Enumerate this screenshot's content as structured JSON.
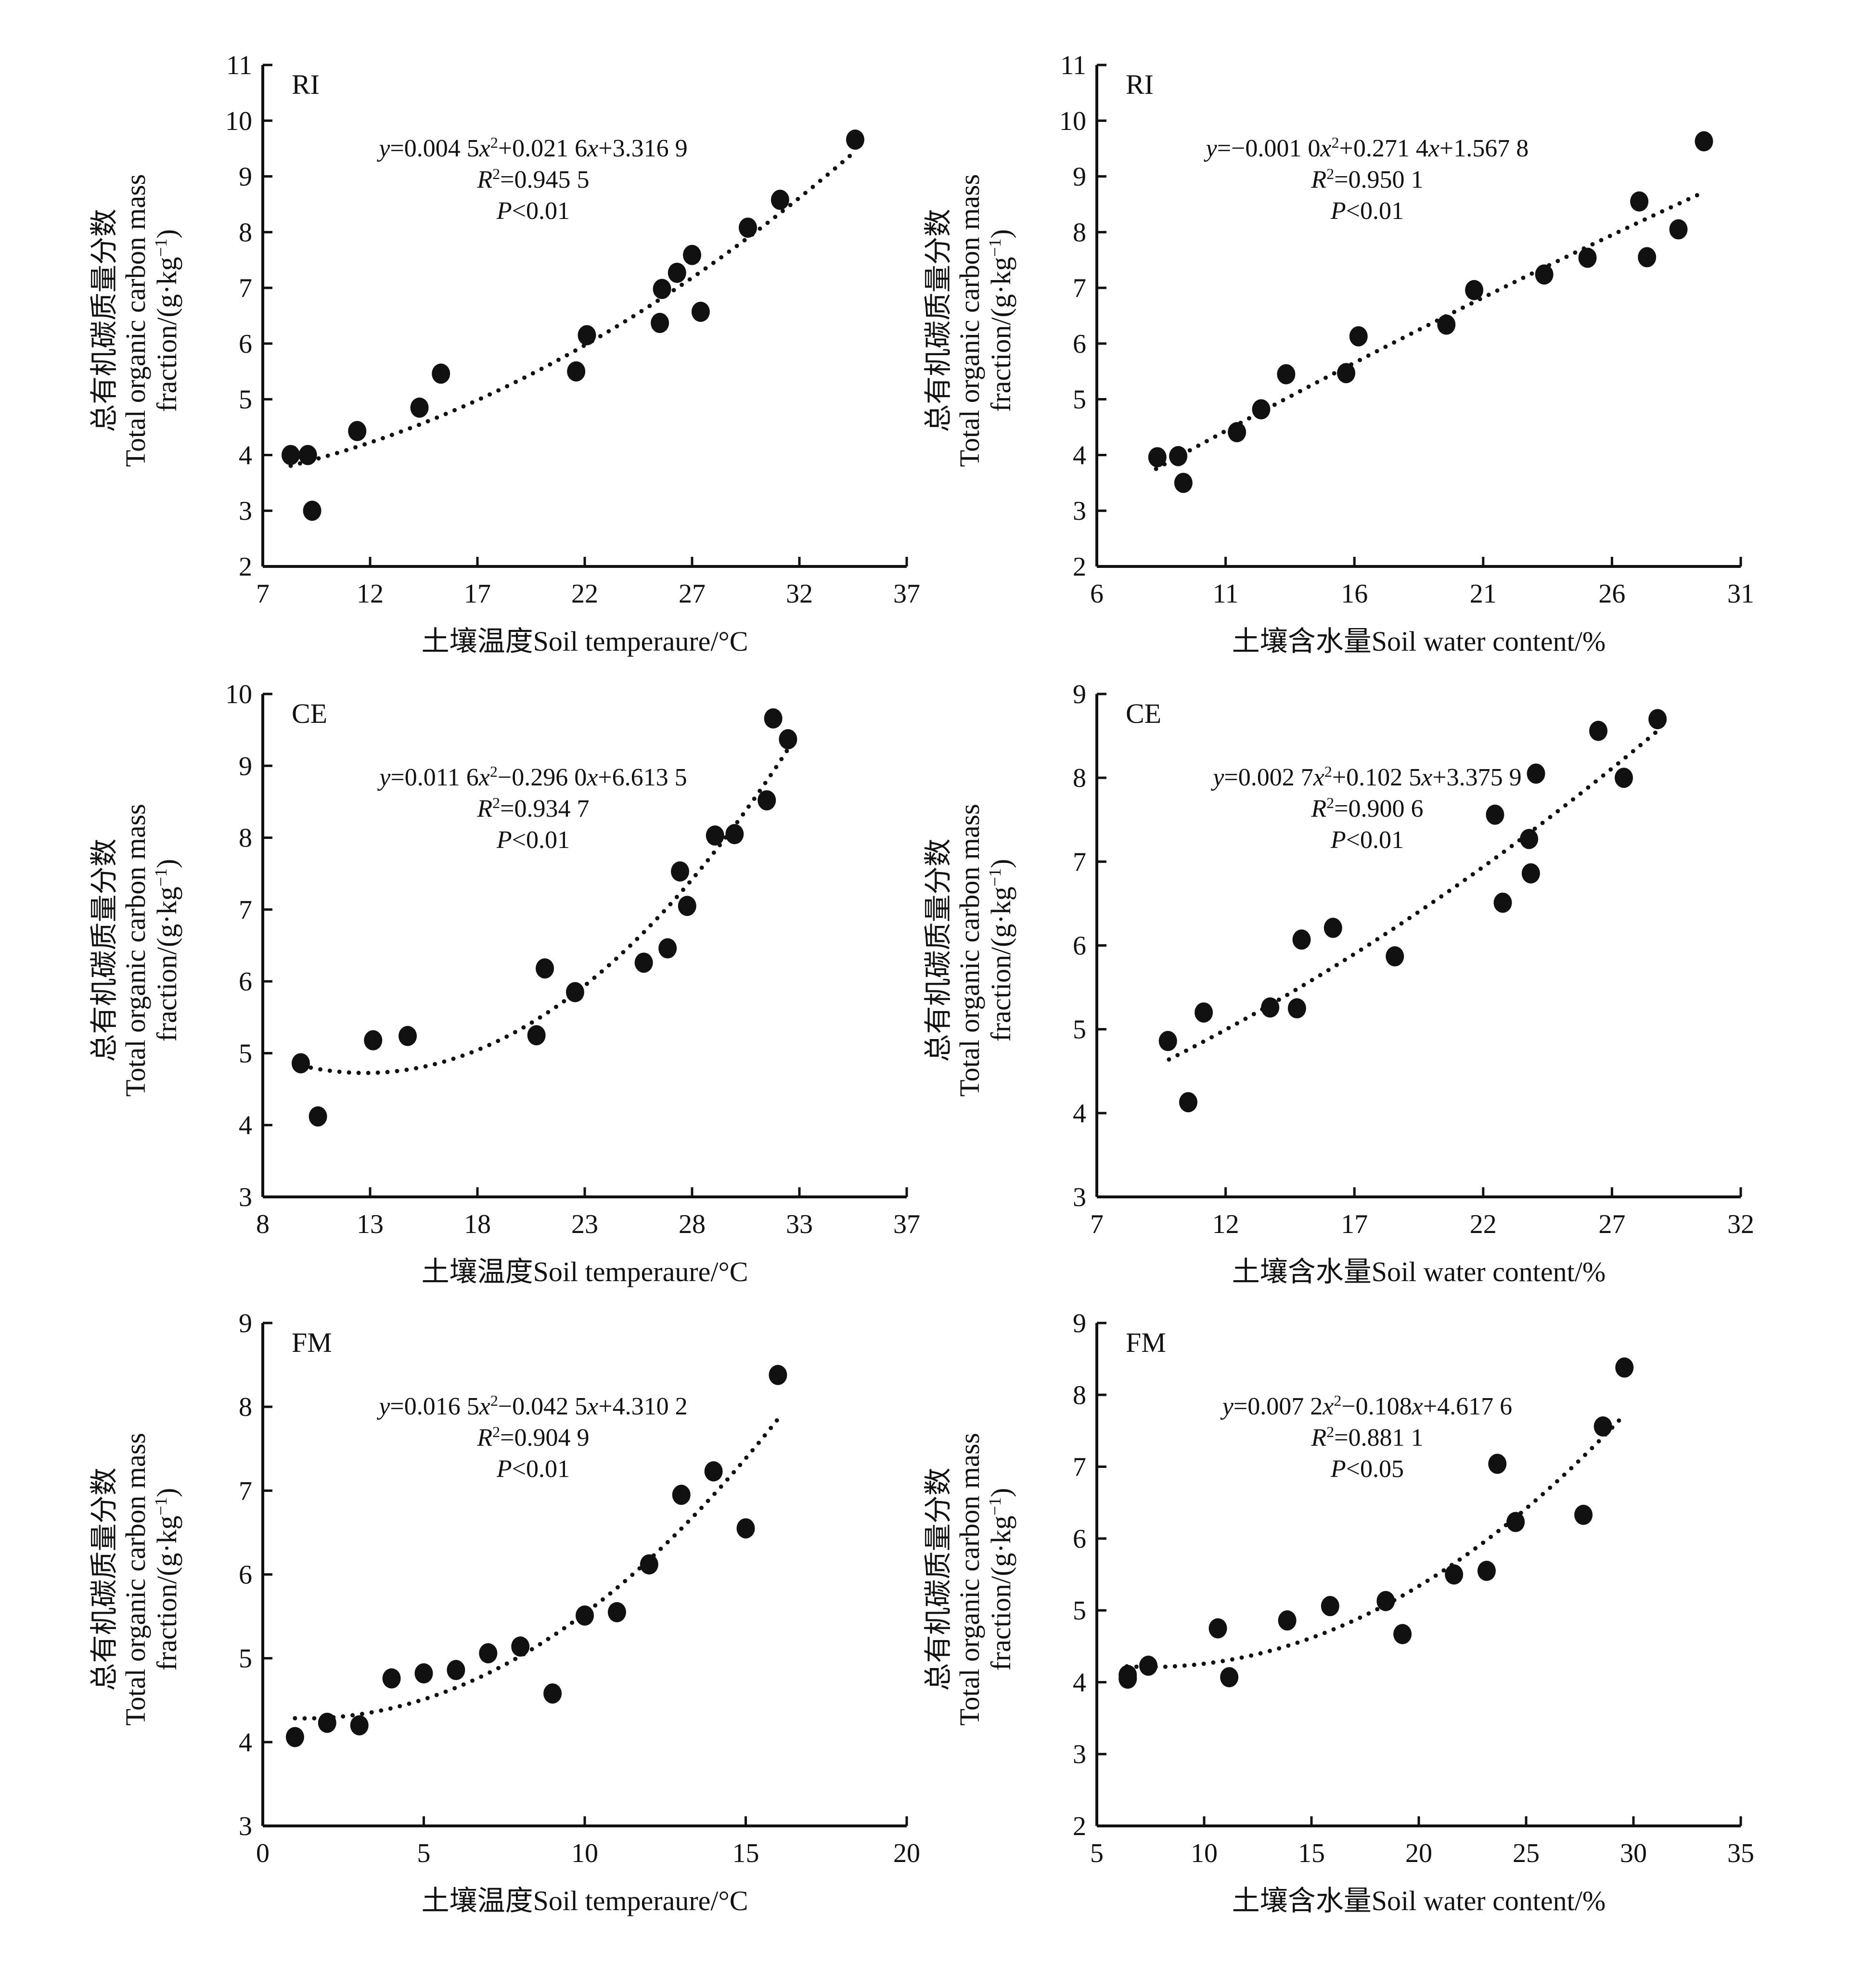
{
  "figure": {
    "y_axis_label_lines": [
      "总有机碳质量分数",
      "Total organic carbon mass",
      "fraction/(g·kg",
      "−1",
      ")"
    ]
  },
  "chart_data": [
    {
      "id": "RI-temp",
      "type": "scatter",
      "panel_label": "RI",
      "xlabel": "土壤温度Soil temperaure/°C",
      "ylabel": "总有机碳质量分数 Total organic carbon mass fraction/(g·kg⁻¹)",
      "xlim": [
        7,
        37
      ],
      "ylim": [
        2,
        11
      ],
      "xticks": [
        "7",
        "12",
        "17",
        "22",
        "27",
        "32",
        "37"
      ],
      "yticks": [
        "2",
        "3",
        "4",
        "5",
        "6",
        "7",
        "8",
        "9",
        "10",
        "11"
      ],
      "grid": false,
      "fit": {
        "a": 0.0045,
        "b": 0.0216,
        "c": 3.3169,
        "x_range": [
          8.3,
          34.6
        ],
        "style": "dotted"
      },
      "annotation": {
        "eq_coef": "0.004 5",
        "eq_mid": "+0.021 6",
        "eq_const": "+3.316 9",
        "r2": "0.945 5",
        "p": "<0.01"
      },
      "points": [
        [
          8.3,
          4.0
        ],
        [
          9.1,
          4.0
        ],
        [
          9.3,
          3.0
        ],
        [
          11.4,
          4.43
        ],
        [
          14.3,
          4.85
        ],
        [
          15.3,
          5.46
        ],
        [
          21.6,
          5.5
        ],
        [
          22.1,
          6.15
        ],
        [
          25.5,
          6.37
        ],
        [
          25.6,
          6.98
        ],
        [
          26.3,
          7.27
        ],
        [
          27.0,
          7.59
        ],
        [
          27.4,
          6.57
        ],
        [
          29.6,
          8.08
        ],
        [
          31.1,
          8.58
        ],
        [
          34.6,
          9.66
        ]
      ]
    },
    {
      "id": "RI-water",
      "type": "scatter",
      "panel_label": "RI",
      "xlabel": "土壤含水量Soil water content/%",
      "ylabel": "总有机碳质量分数 Total organic carbon mass fraction/(g·kg⁻¹)",
      "xlim": [
        6,
        31
      ],
      "ylim": [
        2,
        11
      ],
      "xticks": [
        "6",
        "11",
        "16",
        "21",
        "26",
        "31"
      ],
      "yticks": [
        "2",
        "3",
        "4",
        "5",
        "6",
        "7",
        "8",
        "9",
        "10",
        "11"
      ],
      "grid": false,
      "fit": {
        "a": -0.001,
        "b": 0.2714,
        "c": 1.5678,
        "x_range": [
          8.3,
          29.6
        ],
        "style": "dotted"
      },
      "annotation": {
        "eq_coef": "−0.001 0",
        "eq_mid": "+0.271 4",
        "eq_const": "+1.567 8",
        "r2": "0.950 1",
        "p": "<0.01"
      },
      "points": [
        [
          8.35,
          3.96
        ],
        [
          9.16,
          3.98
        ],
        [
          9.36,
          3.5
        ],
        [
          11.44,
          4.41
        ],
        [
          12.38,
          4.82
        ],
        [
          13.35,
          5.45
        ],
        [
          15.68,
          5.47
        ],
        [
          16.16,
          6.13
        ],
        [
          19.57,
          6.34
        ],
        [
          20.65,
          6.96
        ],
        [
          23.37,
          7.24
        ],
        [
          25.05,
          7.54
        ],
        [
          27.06,
          8.55
        ],
        [
          27.36,
          7.55
        ],
        [
          28.58,
          8.05
        ],
        [
          29.57,
          9.63
        ]
      ]
    },
    {
      "id": "CE-temp",
      "type": "scatter",
      "panel_label": "CE",
      "xlabel": "土壤温度Soil temperaure/°C",
      "ylabel": "总有机碳质量分数 Total organic carbon mass fraction/(g·kg⁻¹)",
      "xlim": [
        8,
        38
      ],
      "ylim": [
        3,
        10
      ],
      "xticks": [
        "8",
        "13",
        "18",
        "23",
        "28",
        "33",
        "37"
      ],
      "yticks": [
        "3",
        "4",
        "5",
        "6",
        "7",
        "8",
        "9",
        "10"
      ],
      "grid": false,
      "fit": {
        "a": 0.0116,
        "b": -0.296,
        "c": 6.6135,
        "x_range": [
          9.8,
          32.5
        ],
        "style": "dotted"
      },
      "annotation": {
        "eq_coef": "0.011 6",
        "eq_mid": "−0.296 0",
        "eq_const": "+6.613 5",
        "r2": "0.934 7",
        "p": "<0.01"
      },
      "points": [
        [
          9.77,
          4.86
        ],
        [
          10.57,
          4.12
        ],
        [
          13.14,
          5.18
        ],
        [
          14.75,
          5.24
        ],
        [
          20.75,
          5.25
        ],
        [
          21.14,
          6.18
        ],
        [
          22.55,
          5.85
        ],
        [
          25.75,
          6.26
        ],
        [
          26.86,
          6.46
        ],
        [
          27.44,
          7.53
        ],
        [
          27.77,
          7.05
        ],
        [
          29.07,
          8.03
        ],
        [
          29.98,
          8.05
        ],
        [
          31.48,
          8.52
        ],
        [
          31.78,
          9.66
        ],
        [
          32.47,
          9.37
        ]
      ]
    },
    {
      "id": "CE-water",
      "type": "scatter",
      "panel_label": "CE",
      "xlabel": "土壤含水量Soil water content/%",
      "ylabel": "总有机碳质量分数 Total organic carbon mass fraction/(g·kg⁻¹)",
      "xlim": [
        7,
        32
      ],
      "ylim": [
        3,
        9
      ],
      "xticks": [
        "7",
        "12",
        "17",
        "22",
        "27",
        "32"
      ],
      "yticks": [
        "3",
        "4",
        "5",
        "6",
        "7",
        "8",
        "9"
      ],
      "grid": false,
      "fit": {
        "a": 0.0027,
        "b": 0.1025,
        "c": 3.3759,
        "x_range": [
          9.8,
          28.8
        ],
        "style": "dotted"
      },
      "annotation": {
        "eq_coef": "0.002 7",
        "eq_mid": "+0.102 5",
        "eq_const": "+3.375 9",
        "r2": "0.900 6",
        "p": "<0.01"
      },
      "points": [
        [
          9.76,
          4.86
        ],
        [
          10.55,
          4.13
        ],
        [
          11.15,
          5.2
        ],
        [
          13.73,
          5.26
        ],
        [
          14.77,
          5.25
        ],
        [
          14.95,
          6.07
        ],
        [
          16.17,
          6.21
        ],
        [
          18.57,
          5.87
        ],
        [
          22.46,
          7.56
        ],
        [
          22.76,
          6.51
        ],
        [
          23.78,
          7.27
        ],
        [
          23.85,
          6.86
        ],
        [
          24.05,
          8.05
        ],
        [
          26.47,
          8.56
        ],
        [
          27.46,
          8.0
        ],
        [
          28.77,
          8.7
        ]
      ]
    },
    {
      "id": "FM-temp",
      "type": "scatter",
      "panel_label": "FM",
      "xlabel": "土壤温度Soil temperaure/°C",
      "ylabel": "总有机碳质量分数 Total organic carbon mass fraction/(g·kg⁻¹)",
      "xlim": [
        0,
        20
      ],
      "ylim": [
        3,
        9
      ],
      "xticks": [
        "0",
        "5",
        "10",
        "15",
        "20"
      ],
      "yticks": [
        "3",
        "4",
        "5",
        "6",
        "7",
        "8",
        "9"
      ],
      "grid": false,
      "fit": {
        "a": 0.0165,
        "b": -0.0425,
        "c": 4.3102,
        "x_range": [
          1,
          16
        ],
        "style": "dotted"
      },
      "annotation": {
        "eq_coef": "0.016 5",
        "eq_mid": "−0.042 5",
        "eq_const": "+4.310 2",
        "r2": "0.904 9",
        "p": "<0.01"
      },
      "points": [
        [
          1,
          4.06
        ],
        [
          2,
          4.23
        ],
        [
          3,
          4.2
        ],
        [
          4,
          4.76
        ],
        [
          5,
          4.82
        ],
        [
          6,
          4.86
        ],
        [
          7,
          5.06
        ],
        [
          8,
          5.14
        ],
        [
          9,
          4.58
        ],
        [
          10,
          5.51
        ],
        [
          11,
          5.55
        ],
        [
          12,
          6.12
        ],
        [
          13,
          6.95
        ],
        [
          14,
          7.23
        ],
        [
          15,
          6.55
        ],
        [
          16,
          8.38
        ]
      ]
    },
    {
      "id": "FM-water",
      "type": "scatter",
      "panel_label": "FM",
      "xlabel": "土壤含水量Soil water content/%",
      "ylabel": "总有机碳质量分数 Total organic carbon mass fraction/(g·kg⁻¹)",
      "xlim": [
        5,
        35
      ],
      "ylim": [
        2,
        9
      ],
      "xticks": [
        "5",
        "10",
        "15",
        "20",
        "25",
        "30",
        "35"
      ],
      "yticks": [
        "2",
        "3",
        "4",
        "5",
        "6",
        "7",
        "8",
        "9"
      ],
      "grid": false,
      "fit": {
        "a": 0.0072,
        "b": -0.108,
        "c": 4.6176,
        "x_range": [
          6.4,
          29.6
        ],
        "style": "dotted"
      },
      "annotation": {
        "eq_coef": "0.007 2",
        "eq_mid": "−0.108",
        "eq_const": "+4.617 6",
        "r2": "0.881 1",
        "p": "<0.05"
      },
      "points": [
        [
          6.44,
          4.1
        ],
        [
          6.44,
          4.05
        ],
        [
          7.4,
          4.23
        ],
        [
          10.64,
          4.75
        ],
        [
          11.17,
          4.07
        ],
        [
          13.87,
          4.86
        ],
        [
          15.87,
          5.06
        ],
        [
          18.46,
          5.13
        ],
        [
          19.24,
          4.67
        ],
        [
          21.64,
          5.5
        ],
        [
          23.16,
          5.55
        ],
        [
          23.66,
          7.04
        ],
        [
          24.51,
          6.23
        ],
        [
          27.67,
          6.33
        ],
        [
          28.58,
          7.56
        ],
        [
          29.58,
          8.38
        ]
      ]
    }
  ]
}
